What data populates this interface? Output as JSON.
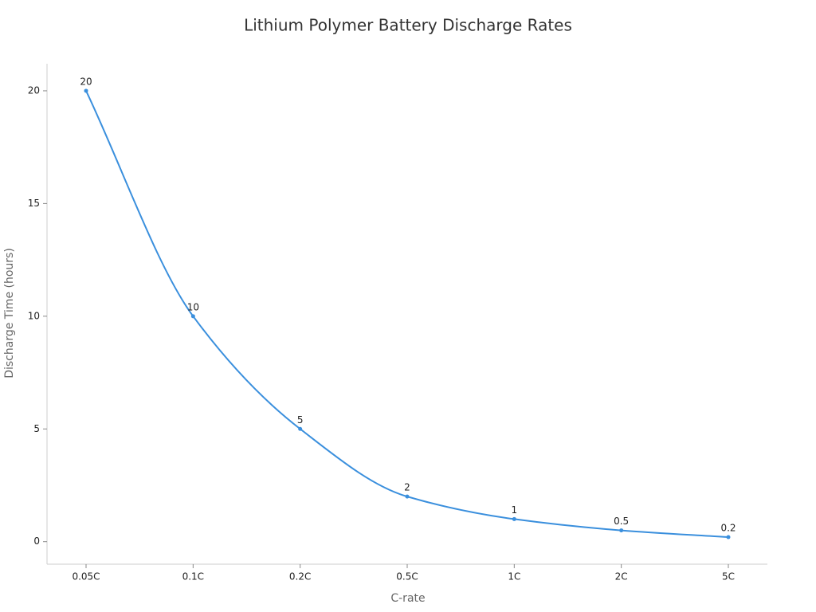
{
  "chart_data": {
    "type": "line",
    "title": "Lithium Polymer Battery Discharge Rates",
    "x_label": "C-rate",
    "y_label": "Discharge Time (hours)",
    "categories": [
      "0.05C",
      "0.1C",
      "0.2C",
      "0.5C",
      "1C",
      "2C",
      "5C"
    ],
    "values": [
      20,
      10,
      5,
      2,
      1,
      0.5,
      0.2
    ],
    "color": "#3a8fdd",
    "ylim": [
      -1,
      21.2
    ],
    "yticks": [
      0,
      5,
      10,
      15,
      20
    ],
    "grid": false
  }
}
